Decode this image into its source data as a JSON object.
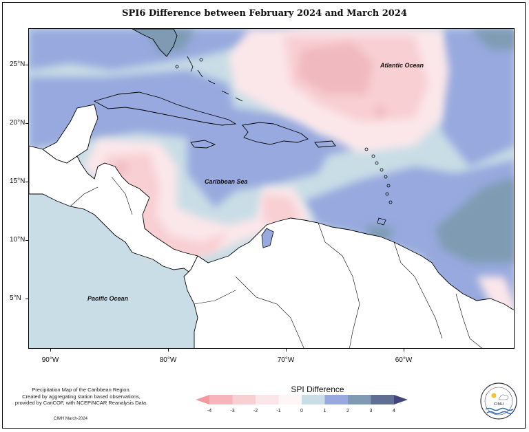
{
  "title": "SPI6 Difference between February 2024 and March 2024",
  "axes": {
    "x_ticks": [
      "90°W",
      "80°W",
      "70°W",
      "60°W"
    ],
    "y_ticks": [
      "25°N",
      "20°N",
      "15°N",
      "10°N",
      "5°N"
    ]
  },
  "labels": {
    "atlantic": "Atlantic Ocean",
    "caribbean": "Caribbean Sea",
    "pacific": "Pacific Ocean"
  },
  "credit": {
    "line1": "Precipitation Map of the Caribbean Region.",
    "line2": "Created by aggregating station based observations,",
    "line3": "provided by CariCOF, with NCEP/NCAR Reanalysis Data.",
    "footer": "CIMH March-2024"
  },
  "legend": {
    "title": "SPI Difference",
    "ticks": [
      "-4",
      "-3",
      "-2",
      "-1",
      "0",
      "1",
      "2",
      "3",
      "4"
    ],
    "colors": [
      "#f29aa0",
      "#f5b5bb",
      "#f8cfd3",
      "#fbe7ea",
      "#fdf5f6",
      "#c9dde6",
      "#97a9de",
      "#7e9bb3",
      "#5f6e93",
      "#43457c"
    ]
  },
  "logo": {
    "text": "CIMH"
  }
}
